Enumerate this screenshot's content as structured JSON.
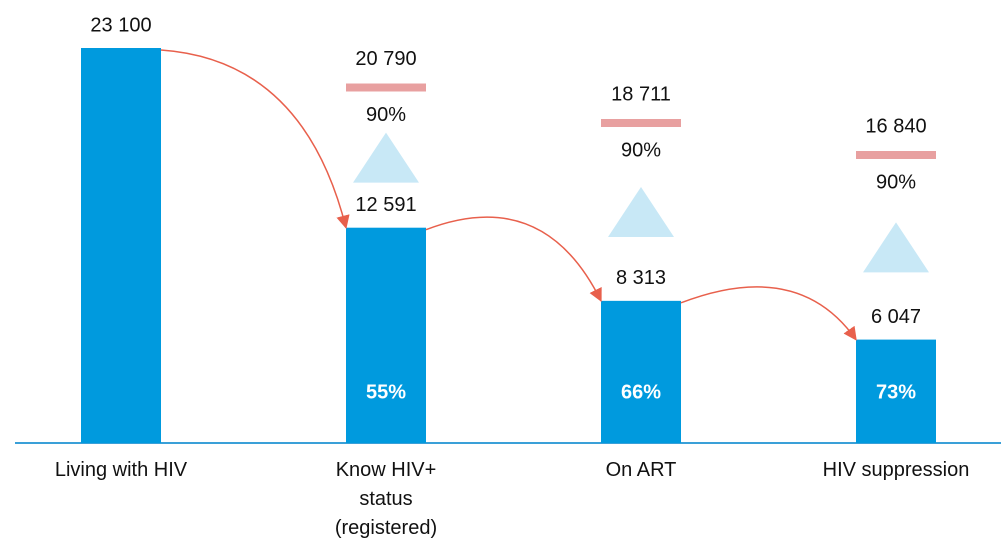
{
  "chart_data": {
    "type": "bar",
    "categories": [
      "Living with HIV",
      "Know HIV+ status (registered)",
      "On ART",
      "HIV suppression"
    ],
    "values": [
      23100,
      12591,
      8313,
      6047
    ],
    "value_labels": [
      "23 100",
      "12 591",
      "8 313",
      "6 047"
    ],
    "color": "#009ade",
    "conversion_rates": {
      "values": [
        null,
        55,
        66,
        73
      ],
      "value_labels": [
        null,
        "55%",
        "66%",
        "73%"
      ]
    },
    "targets": {
      "values": [
        null,
        20790,
        18711,
        16840
      ],
      "value_labels": [
        null,
        "20 790",
        "18 711",
        "16 840"
      ],
      "color": "#e8a0a0"
    },
    "target_rates": {
      "values": [
        null,
        90,
        90,
        90
      ],
      "value_labels": [
        null,
        "90%",
        "90%",
        "90%"
      ]
    },
    "arrow_color": "#e8604c",
    "triangle_color": "#c8e8f6",
    "axis_color": "#3aa0d8"
  }
}
